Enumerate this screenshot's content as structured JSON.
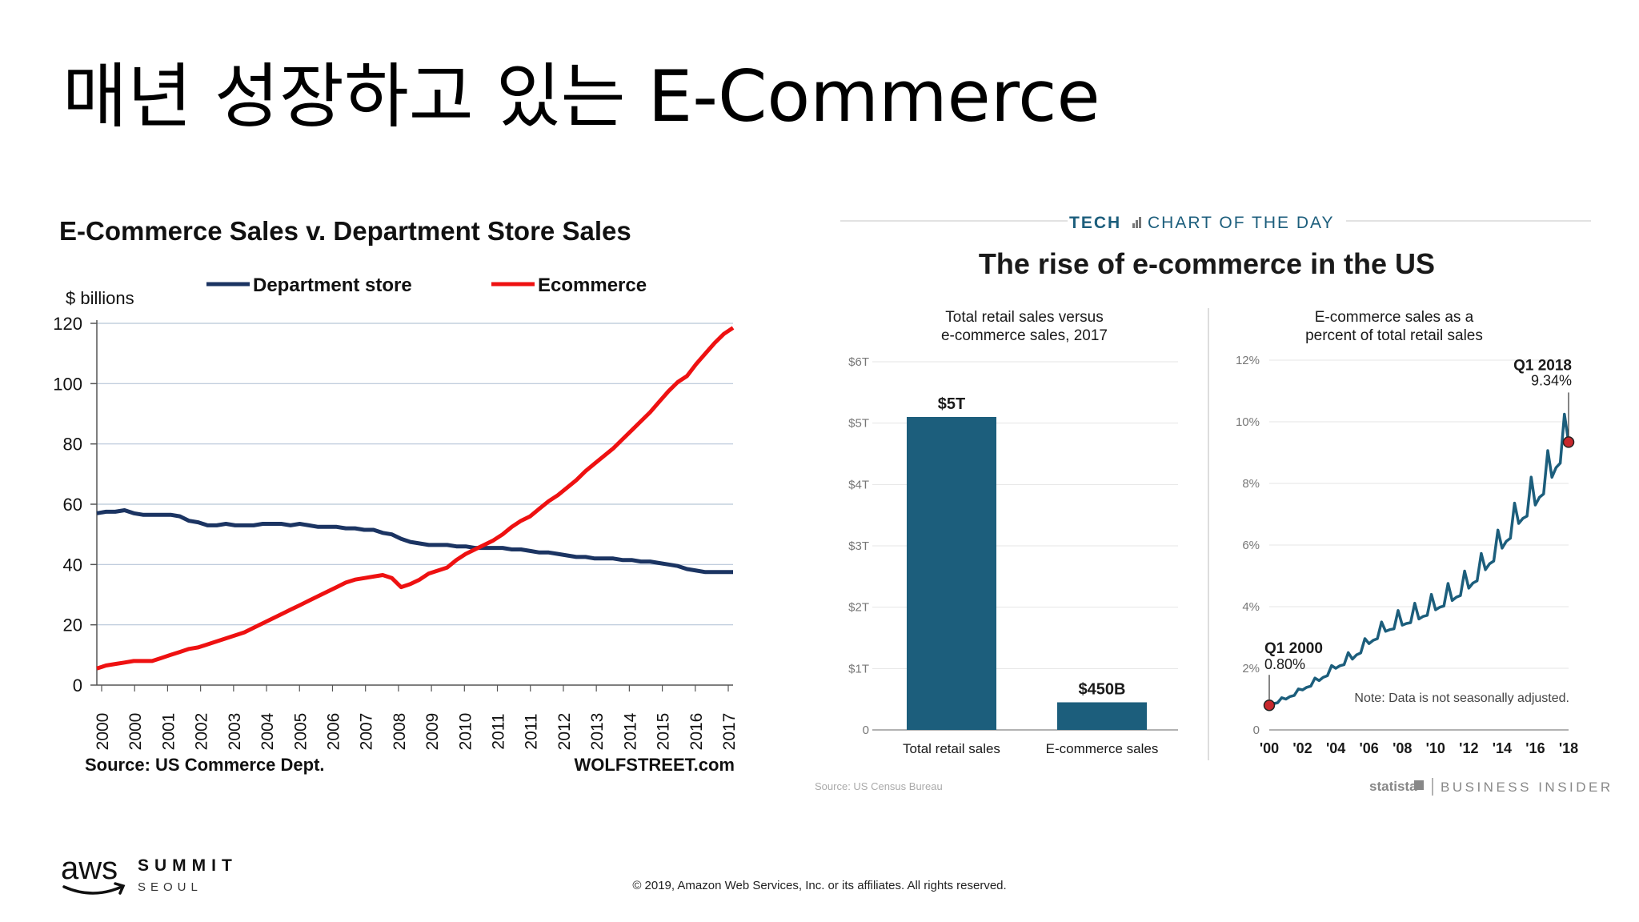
{
  "slide": {
    "title": "매년 성장하고 있는 E-Commerce",
    "copyright": "© 2019, Amazon Web Services, Inc. or its affiliates. All rights reserved.",
    "logo": {
      "aws": "aws",
      "summit": "SUMMIT",
      "seoul": "SEOUL"
    }
  },
  "chart_data": [
    {
      "type": "line",
      "title": "E-Commerce Sales v. Department Store Sales",
      "ylabel": "$ billions",
      "xlabel": "",
      "ylim": [
        0,
        120
      ],
      "yticks": [
        0,
        20,
        40,
        60,
        80,
        100,
        120
      ],
      "xtick_labels": [
        "2000",
        "2000",
        "2001",
        "2002",
        "2003",
        "2004",
        "2005",
        "2006",
        "2007",
        "2008",
        "2009",
        "2010",
        "2011",
        "2011",
        "2012",
        "2013",
        "2014",
        "2015",
        "2016",
        "2017"
      ],
      "grid": true,
      "legend": "top",
      "source": "Source: US Commerce Dept.",
      "credit": "WOLFSTREET.com",
      "series": [
        {
          "name": "Department store",
          "color": "#1b3462",
          "x": [
            2000.0,
            2000.25,
            2000.5,
            2000.75,
            2001.0,
            2001.25,
            2001.5,
            2001.75,
            2002.0,
            2002.25,
            2002.5,
            2002.75,
            2003.0,
            2003.25,
            2003.5,
            2003.75,
            2004.0,
            2004.25,
            2004.5,
            2004.75,
            2005.0,
            2005.25,
            2005.5,
            2005.75,
            2006.0,
            2006.25,
            2006.5,
            2006.75,
            2007.0,
            2007.25,
            2007.5,
            2007.75,
            2008.0,
            2008.25,
            2008.5,
            2008.75,
            2009.0,
            2009.25,
            2009.5,
            2009.75,
            2010.0,
            2010.25,
            2010.5,
            2010.75,
            2011.0,
            2011.25,
            2011.5,
            2011.75,
            2012.0,
            2012.25,
            2012.5,
            2012.75,
            2013.0,
            2013.25,
            2013.5,
            2013.75,
            2014.0,
            2014.25,
            2014.5,
            2014.75,
            2015.0,
            2015.25,
            2015.5,
            2015.75,
            2016.0,
            2016.25,
            2016.5,
            2016.75,
            2017.0,
            2017.25
          ],
          "values": [
            57,
            57.5,
            57.5,
            58,
            57,
            56.5,
            56.5,
            56.5,
            56.5,
            56,
            54.5,
            54,
            53,
            53,
            53.5,
            53,
            53,
            53,
            53.5,
            53.5,
            53.5,
            53,
            53.5,
            53,
            52.5,
            52.5,
            52.5,
            52,
            52,
            51.5,
            51.5,
            50.5,
            50,
            48.5,
            47.5,
            47,
            46.5,
            46.5,
            46.5,
            46,
            46,
            45.5,
            45.5,
            45.5,
            45.5,
            45,
            45,
            44.5,
            44,
            44,
            43.5,
            43,
            42.5,
            42.5,
            42,
            42,
            42,
            41.5,
            41.5,
            41,
            41,
            40.5,
            40,
            39.5,
            38.5,
            38,
            37.5,
            37.5,
            37.5,
            37.5
          ]
        },
        {
          "name": "Ecommerce",
          "color": "#ee1111",
          "x": [
            2000.0,
            2000.25,
            2000.5,
            2000.75,
            2001.0,
            2001.25,
            2001.5,
            2001.75,
            2002.0,
            2002.25,
            2002.5,
            2002.75,
            2003.0,
            2003.25,
            2003.5,
            2003.75,
            2004.0,
            2004.25,
            2004.5,
            2004.75,
            2005.0,
            2005.25,
            2005.5,
            2005.75,
            2006.0,
            2006.25,
            2006.5,
            2006.75,
            2007.0,
            2007.25,
            2007.5,
            2007.75,
            2008.0,
            2008.25,
            2008.5,
            2008.75,
            2009.0,
            2009.25,
            2009.5,
            2009.75,
            2010.0,
            2010.25,
            2010.5,
            2010.75,
            2011.0,
            2011.25,
            2011.5,
            2011.75,
            2012.0,
            2012.25,
            2012.5,
            2012.75,
            2013.0,
            2013.25,
            2013.5,
            2013.75,
            2014.0,
            2014.25,
            2014.5,
            2014.75,
            2015.0,
            2015.25,
            2015.5,
            2015.75,
            2016.0,
            2016.25,
            2016.5,
            2016.75,
            2017.0,
            2017.25
          ],
          "values": [
            5.5,
            6.5,
            7,
            7.5,
            8,
            8,
            8,
            9,
            10,
            11,
            12,
            12.5,
            13.5,
            14.5,
            15.5,
            16.5,
            17.5,
            19,
            20.5,
            22,
            23.5,
            25,
            26.5,
            28,
            29.5,
            31,
            32.5,
            34,
            35,
            35.5,
            36,
            36.5,
            35.5,
            32.5,
            33.5,
            35,
            37,
            38,
            39,
            41.5,
            43.5,
            45,
            46.5,
            48,
            50,
            52.5,
            54.5,
            56,
            58.5,
            61,
            63,
            65.5,
            68,
            71,
            73.5,
            76,
            78.5,
            81.5,
            84.5,
            87.5,
            90.5,
            94,
            97.5,
            100.5,
            102.5,
            106.5,
            110,
            113.5,
            116.5,
            118.5
          ]
        }
      ]
    },
    {
      "type": "bar",
      "header": {
        "tech": "TECH",
        "chart_of_day": "CHART OF THE DAY"
      },
      "title": "The rise of e-commerce in the US",
      "subtitle": "Total retail sales versus e-commerce sales, 2017",
      "subtitle_lines": [
        "Total retail sales versus",
        "e-commerce sales, 2017"
      ],
      "categories": [
        "Total retail sales",
        "E-commerce sales"
      ],
      "values": [
        5.1,
        0.45
      ],
      "unit": "trillion USD",
      "value_labels": [
        "$5T",
        "$450B"
      ],
      "ylim": [
        0,
        6
      ],
      "ytick_labels": [
        "0",
        "$1T",
        "$2T",
        "$3T",
        "$4T",
        "$5T",
        "$6T"
      ],
      "bar_color": "#1c5e7c",
      "source": "Source: US Census Bureau"
    },
    {
      "type": "line",
      "subtitle": "E-commerce sales as a percent of total retail sales",
      "subtitle_lines": [
        "E-commerce sales as a",
        "percent of total retail sales"
      ],
      "ylim": [
        0,
        12
      ],
      "ytick_labels": [
        "0",
        "2%",
        "4%",
        "6%",
        "8%",
        "10%",
        "12%"
      ],
      "xtick_labels": [
        "'00",
        "'02",
        "'04",
        "'06",
        "'08",
        "'10",
        "'12",
        "'14",
        "'16",
        "'18"
      ],
      "xlim": [
        2000,
        2018
      ],
      "line_color": "#1c5e7c",
      "note": "Note: Data is not seasonally adjusted.",
      "annotations": [
        {
          "label": "Q1 2000",
          "value_label": "0.80%",
          "x": 2000.0,
          "y": 0.8
        },
        {
          "label": "Q1 2018",
          "value_label": "9.34%",
          "x": 2018.0,
          "y": 9.34
        }
      ],
      "quarterly_q1_values": [
        0.8,
        1.0,
        1.3,
        1.6,
        2.0,
        2.3,
        2.8,
        3.2,
        3.4,
        3.6,
        3.9,
        4.2,
        4.6,
        5.2,
        5.9,
        6.7,
        7.3,
        8.2,
        9.34
      ],
      "footer": {
        "statista": "statista",
        "business_insider": "BUSINESS INSIDER"
      }
    }
  ]
}
